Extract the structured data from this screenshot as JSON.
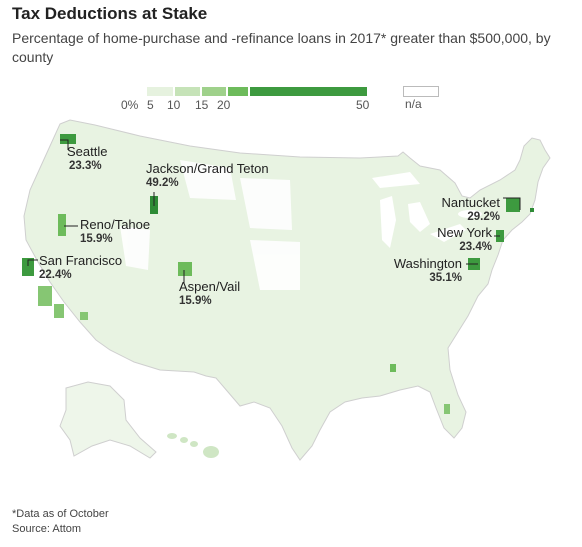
{
  "title": "Tax Deductions at Stake",
  "subtitle": "Percentage of home-purchase and -refinance loans in 2017* greater than $500,000, by county",
  "legend": {
    "ticks": [
      "0%",
      "5",
      "10",
      "15",
      "20",
      "50"
    ],
    "na_label": "n/a",
    "colors": [
      "#e6f2df",
      "#c6e3b8",
      "#9fd18b",
      "#6dbb5b",
      "#3d9a3f"
    ]
  },
  "colors": {
    "land_base": "#e8f3e2",
    "land_stroke": "#cfcfcf",
    "na": "#ffffff",
    "level1": "#d8ebcf",
    "level2": "#b7dca7",
    "level3": "#86c673",
    "level4": "#4aa84a",
    "level5": "#2e8b36"
  },
  "callouts": [
    {
      "name": "Seattle",
      "value": "23.3%"
    },
    {
      "name": "Jackson/Grand Teton",
      "value": "49.2%"
    },
    {
      "name": "Reno/Tahoe",
      "value": "15.9%"
    },
    {
      "name": "San Francisco",
      "value": "22.4%"
    },
    {
      "name": "Aspen/Vail",
      "value": "15.9%"
    },
    {
      "name": "Nantucket",
      "value": "29.2%"
    },
    {
      "name": "New York",
      "value": "23.4%"
    },
    {
      "name": "Washington",
      "value": "35.1%"
    }
  ],
  "footnote": {
    "note": "*Data as of October",
    "source": "Source: Attom"
  }
}
